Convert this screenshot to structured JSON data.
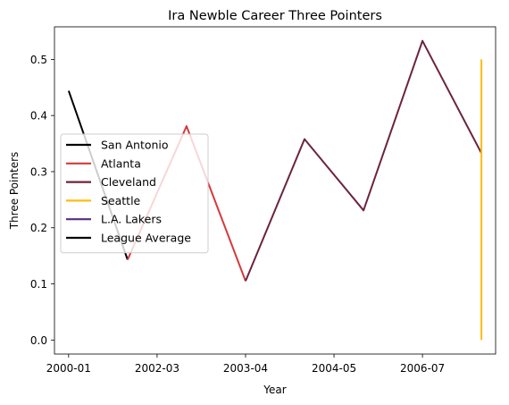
{
  "chart_data": {
    "type": "line",
    "title": "Ira Newble Career Three Pointers",
    "xlabel": "Year",
    "ylabel": "Three Pointers",
    "x_ticks": [
      "2000-01",
      "2002-03",
      "2003-04",
      "2004-05",
      "2006-07"
    ],
    "y_ticks": [
      "0.0",
      "0.1",
      "0.2",
      "0.3",
      "0.4",
      "0.5"
    ],
    "xlim": [
      -0.24,
      7.24
    ],
    "ylim": [
      -0.025,
      0.558
    ],
    "grid": false,
    "legend_position": "center-left",
    "series": [
      {
        "name": "San Antonio",
        "color": "#000000",
        "x": [
          0,
          1
        ],
        "y": [
          0.444,
          0.143
        ]
      },
      {
        "name": "Atlanta",
        "color": "#d63a3a",
        "x": [
          1,
          2,
          3
        ],
        "y": [
          0.143,
          0.381,
          0.105
        ]
      },
      {
        "name": "Cleveland",
        "color": "#6b2340",
        "x": [
          3,
          4,
          5,
          6,
          7
        ],
        "y": [
          0.105,
          0.358,
          0.231,
          0.533,
          0.333
        ]
      },
      {
        "name": "Seattle",
        "color": "#fdbb13",
        "x": [
          7,
          7
        ],
        "y": [
          0.0,
          0.5
        ]
      },
      {
        "name": "L.A. Lakers",
        "color": "#5a2b82",
        "x": [
          7,
          7
        ],
        "y": [
          0.0,
          0.0
        ]
      },
      {
        "name": "League Average",
        "color": "#000000",
        "x": [],
        "y": []
      }
    ]
  }
}
